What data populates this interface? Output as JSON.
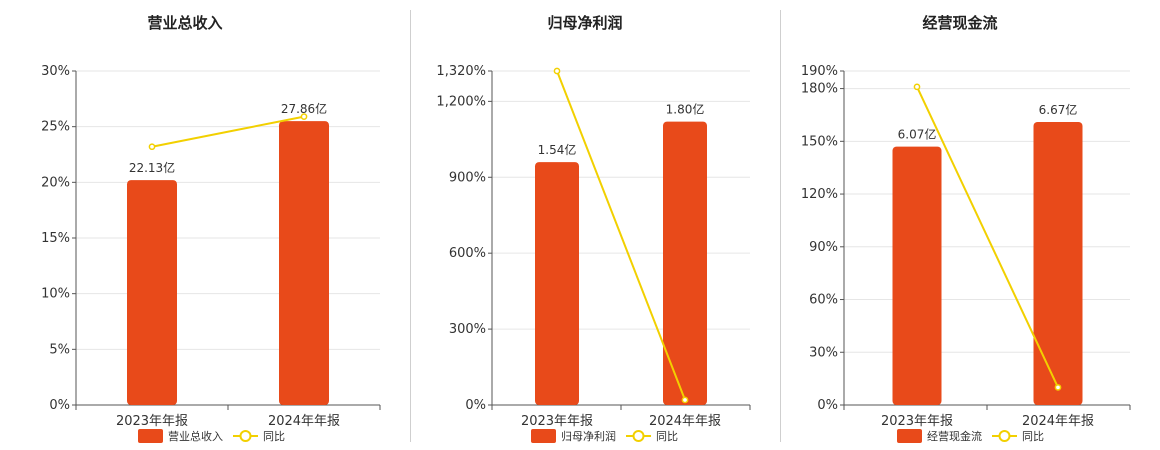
{
  "chart_data": [
    {
      "type": "bar",
      "title": "营业总收入",
      "categories": [
        "2023年年报",
        "2024年年报"
      ],
      "y_ticks": [
        "0%",
        "5%",
        "10%",
        "15%",
        "20%",
        "25%",
        "30%"
      ],
      "ylim": [
        0,
        30
      ],
      "series": [
        {
          "name": "营业总收入",
          "type": "bar",
          "values": [
            20.2,
            25.5
          ],
          "labels": [
            "22.13亿",
            "27.86亿"
          ],
          "color": "#e84a1a"
        },
        {
          "name": "同比",
          "type": "line",
          "values": [
            23.2,
            25.9
          ],
          "color": "#f2d000"
        }
      ]
    },
    {
      "type": "bar",
      "title": "归母净利润",
      "categories": [
        "2023年年报",
        "2024年年报"
      ],
      "y_ticks": [
        "0%",
        "300%",
        "600%",
        "900%",
        "1,200%",
        "1,320%"
      ],
      "y_tick_values": [
        0,
        300,
        600,
        900,
        1200,
        1320
      ],
      "ylim": [
        0,
        1320
      ],
      "series": [
        {
          "name": "归母净利润",
          "type": "bar",
          "values": [
            960,
            1120
          ],
          "labels": [
            "1.54亿",
            "1.80亿"
          ],
          "color": "#e84a1a"
        },
        {
          "name": "同比",
          "type": "line",
          "values": [
            1320,
            20
          ],
          "color": "#f2d000"
        }
      ]
    },
    {
      "type": "bar",
      "title": "经营现金流",
      "categories": [
        "2023年年报",
        "2024年年报"
      ],
      "y_ticks": [
        "0%",
        "30%",
        "60%",
        "90%",
        "120%",
        "150%",
        "180%",
        "190%"
      ],
      "y_tick_values": [
        0,
        30,
        60,
        90,
        120,
        150,
        180,
        190
      ],
      "ylim": [
        0,
        190
      ],
      "series": [
        {
          "name": "经营现金流",
          "type": "bar",
          "values": [
            147,
            161
          ],
          "labels": [
            "6.07亿",
            "6.67亿"
          ],
          "color": "#e84a1a"
        },
        {
          "name": "同比",
          "type": "line",
          "values": [
            181,
            10
          ],
          "color": "#f2d000"
        }
      ]
    }
  ]
}
